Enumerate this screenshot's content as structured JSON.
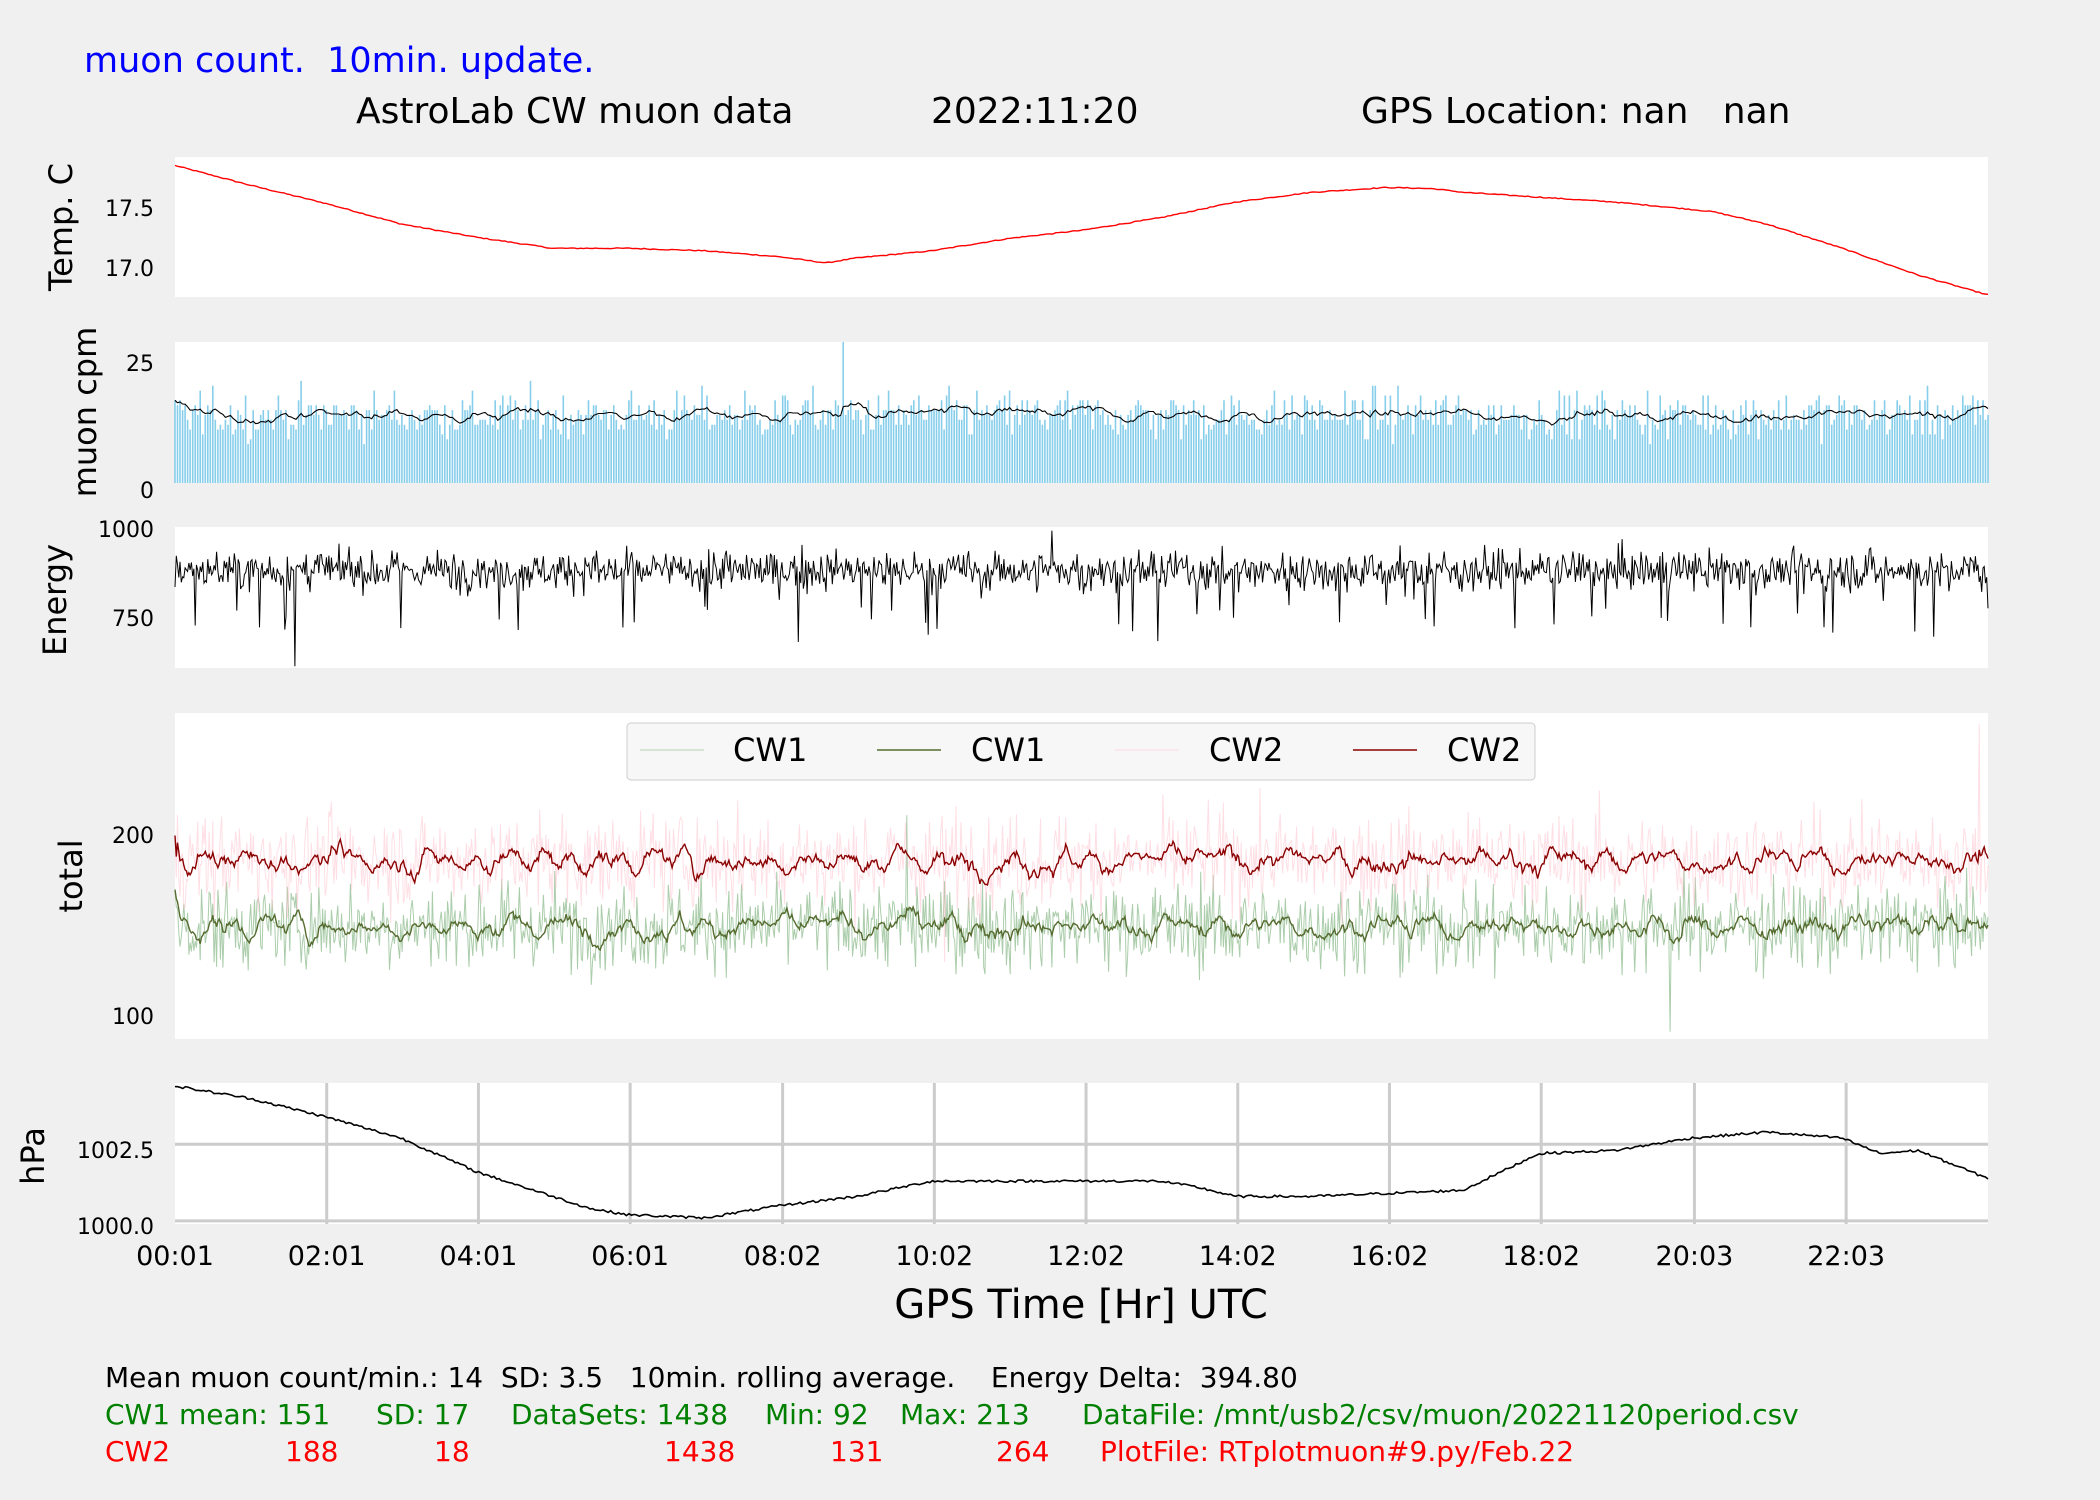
{
  "header": {
    "subtitle": "muon count.  10min. update.",
    "title": "AstroLab CW muon data",
    "date": "2022:11:20",
    "location": "GPS Location: nan   nan"
  },
  "colors": {
    "background": "#f0f0f0",
    "temperature": "#ff0000",
    "muon_bars": "#87ceeb",
    "black": "#000000",
    "cw1_raw": "#8fbc8f",
    "cw1_avg": "#556b2f",
    "cw2_raw": "#ffc0cb",
    "cw2_avg": "#8b0000",
    "green_text": "#008000",
    "red_text": "#ff0000",
    "blue_text": "#0000ff"
  },
  "chart_data": [
    {
      "type": "line",
      "panel": "temperature",
      "ylabel": "Temp. C",
      "yticks": [
        17.0,
        17.5
      ],
      "ylim": [
        16.8,
        17.95
      ],
      "series": [
        {
          "color": "#ff0000",
          "x": [
            0.02,
            1,
            2,
            3,
            4,
            5,
            6,
            7,
            8,
            8.6,
            9,
            10,
            11,
            12,
            13,
            14,
            15,
            16,
            16.6,
            17,
            18,
            19,
            20,
            20.3,
            21,
            22,
            23,
            23.9
          ],
          "y": [
            17.88,
            17.72,
            17.57,
            17.4,
            17.29,
            17.2,
            17.2,
            17.18,
            17.13,
            17.08,
            17.12,
            17.18,
            17.28,
            17.35,
            17.45,
            17.58,
            17.66,
            17.7,
            17.69,
            17.66,
            17.62,
            17.58,
            17.52,
            17.5,
            17.4,
            17.2,
            16.98,
            16.82
          ]
        }
      ]
    },
    {
      "type": "bar",
      "panel": "muon-cpm",
      "ylabel": "muon cpm",
      "yticks": [
        0,
        25
      ],
      "ylim": [
        0,
        29
      ],
      "mean": 14,
      "sd": 3.5,
      "peak": 29,
      "series": [
        {
          "color": "#87ceeb"
        },
        {
          "color": "#000000"
        }
      ]
    },
    {
      "type": "line",
      "panel": "energy",
      "ylabel": "Energy",
      "yticks": [
        750,
        1000
      ],
      "ylim": [
        620,
        1010
      ],
      "mean": 890,
      "peak": 1000,
      "min": 625,
      "series": [
        {
          "color": "#000000"
        }
      ]
    },
    {
      "type": "line",
      "panel": "total",
      "ylabel": "total",
      "yticks": [
        100,
        200
      ],
      "ylim": [
        88,
        270
      ],
      "legend_location": "top-center",
      "series": [
        {
          "name": "CW1",
          "color": "#8fbc8f",
          "mean": 151,
          "sd": 17,
          "min": 92,
          "max": 213
        },
        {
          "name": "CW1",
          "color": "#556b2f",
          "mean": 151
        },
        {
          "name": "CW2",
          "color": "#ffc0cb",
          "mean": 188,
          "sd": 18,
          "min": 131,
          "max": 264
        },
        {
          "name": "CW2",
          "color": "#8b0000",
          "mean": 188
        }
      ]
    },
    {
      "type": "line",
      "panel": "pressure",
      "ylabel": "hPa",
      "yticks": [
        1000.0,
        1002.5
      ],
      "ylim": [
        999.9,
        1004.5
      ],
      "grid": true,
      "xlabel": "GPS Time  [Hr] UTC",
      "xticks": [
        "00:01",
        "02:01",
        "04:01",
        "06:01",
        "08:02",
        "10:02",
        "12:02",
        "14:02",
        "16:02",
        "18:02",
        "20:03",
        "22:03"
      ],
      "xtick_hours": [
        0.02,
        2.02,
        4.02,
        6.02,
        8.03,
        10.03,
        12.03,
        14.03,
        16.03,
        18.03,
        20.05,
        22.05
      ],
      "xlim": [
        0.02,
        23.92
      ],
      "series": [
        {
          "color": "#000000",
          "x": [
            0.02,
            1,
            2,
            3,
            4,
            5,
            5.5,
            6,
            7,
            8,
            9,
            10,
            11,
            12,
            13,
            13.5,
            14,
            15,
            16,
            17,
            18,
            19,
            20,
            21,
            22,
            22.5,
            23,
            23.5,
            23.9
          ],
          "y": [
            1004.4,
            1004.0,
            1003.4,
            1002.7,
            1001.6,
            1000.8,
            1000.4,
            1000.2,
            1000.1,
            1000.5,
            1000.8,
            1001.3,
            1001.3,
            1001.3,
            1001.3,
            1001.1,
            1000.8,
            1000.8,
            1000.9,
            1001.0,
            1002.2,
            1002.3,
            1002.7,
            1002.9,
            1002.7,
            1002.2,
            1002.3,
            1001.8,
            1001.4
          ]
        }
      ]
    }
  ],
  "x_axis": {
    "label": "GPS Time  [Hr] UTC",
    "ticks": [
      "00:01",
      "02:01",
      "04:01",
      "06:01",
      "08:02",
      "10:02",
      "12:02",
      "14:02",
      "16:02",
      "18:02",
      "20:03",
      "22:03"
    ]
  },
  "legend": {
    "items": [
      {
        "label": "CW1",
        "color": "#8fbc8f"
      },
      {
        "label": "CW1",
        "color": "#556b2f"
      },
      {
        "label": "CW2",
        "color": "#ffc0cb"
      },
      {
        "label": "CW2",
        "color": "#8b0000"
      }
    ]
  },
  "stats": {
    "line1": "Mean muon count/min.: 14  SD: 3.5   10min. rolling average.    Energy Delta:  394.80",
    "cw1": {
      "mean": "CW1 mean: 151",
      "sd": "SD: 17",
      "datasets": "DataSets: 1438",
      "min": "Min: 92",
      "max": "Max: 213",
      "file": "DataFile: /mnt/usb2/csv/muon/20221120period.csv"
    },
    "cw2": {
      "label": "CW2",
      "mean": "188",
      "sd": "18",
      "datasets": "1438",
      "min": "131",
      "max": "264",
      "file": "PlotFile: RTplotmuon#9.py/Feb.22"
    }
  }
}
